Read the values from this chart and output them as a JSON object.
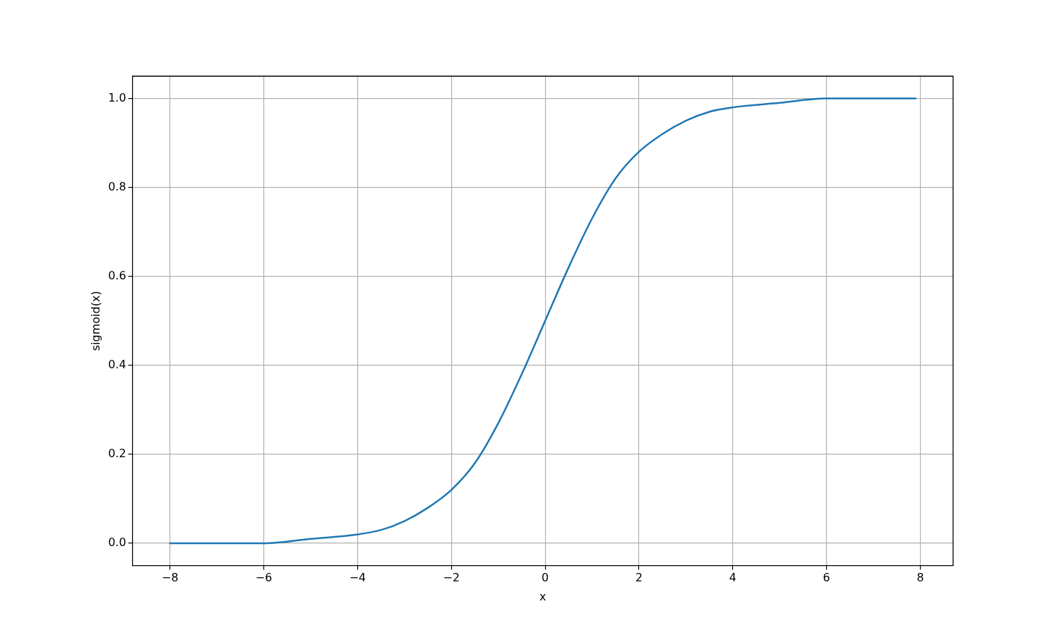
{
  "chart_data": {
    "type": "line",
    "xlabel": "x",
    "ylabel": "sigmoid(x)",
    "series": [
      {
        "color": "#1f77b4",
        "x": [
          -8,
          -7,
          -6,
          -5,
          -4,
          -3.5,
          -3,
          -2.5,
          -2,
          -1.5,
          -1,
          -0.5,
          0,
          0.5,
          1,
          1.5,
          2,
          2.5,
          3,
          3.5,
          4,
          5,
          6,
          7,
          7.9
        ],
        "values": [
          0.0,
          0.0,
          0.0,
          0.01,
          0.02,
          0.03,
          0.05,
          0.08,
          0.12,
          0.18,
          0.27,
          0.38,
          0.5,
          0.62,
          0.73,
          0.82,
          0.88,
          0.92,
          0.95,
          0.97,
          0.98,
          0.99,
          1.0,
          1.0,
          1.0
        ]
      }
    ],
    "xlim": [
      -8.8,
      8.7
    ],
    "ylim": [
      -0.05,
      1.05
    ],
    "xticks": [
      {
        "value": -8,
        "label": "−8"
      },
      {
        "value": -6,
        "label": "−6"
      },
      {
        "value": -4,
        "label": "−4"
      },
      {
        "value": -2,
        "label": "−2"
      },
      0,
      2,
      4,
      6,
      8
    ],
    "yticks": [
      {
        "value": 0,
        "label": "0.0"
      },
      {
        "value": 0.2,
        "label": "0.2"
      },
      {
        "value": 0.4,
        "label": "0.4"
      },
      {
        "value": 0.6,
        "label": "0.6"
      },
      {
        "value": 0.8,
        "label": "0.8"
      },
      {
        "value": 1,
        "label": "1.0"
      }
    ],
    "grid": true,
    "legend": false,
    "marker": "none",
    "line_style": "solid"
  }
}
